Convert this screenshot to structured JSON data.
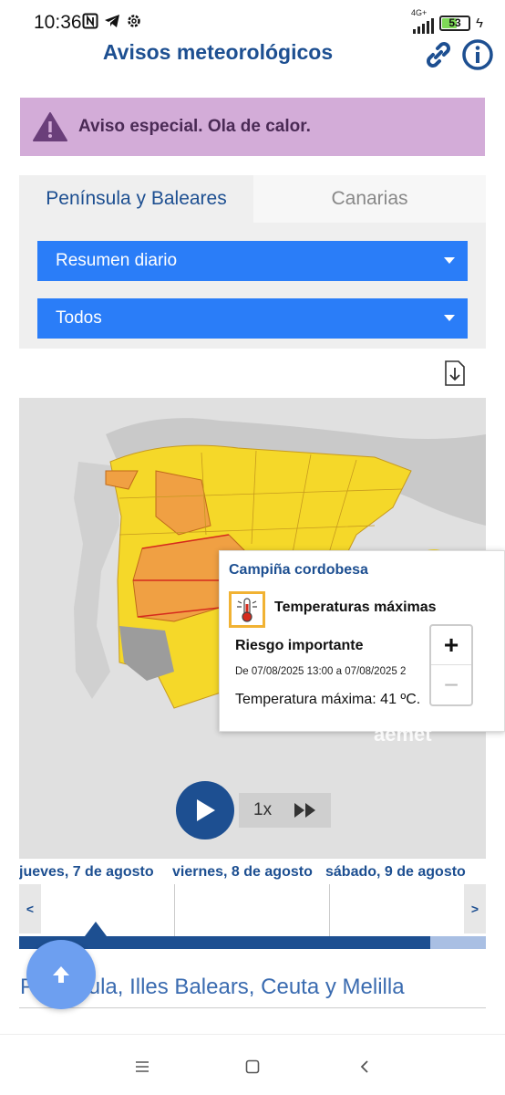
{
  "status_bar": {
    "time": "10:36",
    "network": "4G+",
    "battery_level": "53",
    "battery_fraction": 0.53,
    "icons": [
      "nfc-icon",
      "telegram-icon",
      "settings-icon",
      "signal-icon",
      "battery-icon",
      "charging-icon"
    ]
  },
  "header": {
    "title": "Avisos meteorológicos",
    "link_icon": "link-icon",
    "info_icon": "info-icon",
    "accent_color": "#1d4f91"
  },
  "alert": {
    "text": "Aviso especial. Ola de calor.",
    "icon": "warning-triangle-icon",
    "background": "#d3acd8"
  },
  "tabs": [
    {
      "label": "Península y Baleares",
      "active": true
    },
    {
      "label": "Canarias",
      "active": false
    }
  ],
  "selects": {
    "view": {
      "value": "Resumen diario"
    },
    "filter": {
      "value": "Todos"
    },
    "color": "#2a7df8"
  },
  "map": {
    "popup": {
      "zone": "Campiña cordobesa",
      "event": "Temperaturas máximas",
      "risk": "Riesgo importante",
      "dates": "De 07/08/2025 13:00 a 07/08/2025 2",
      "detail": "Temperatura máxima: 41 ºC."
    },
    "zoom_in": "+",
    "zoom_out": "−",
    "watermark": "aemet",
    "warning_colors": {
      "yellow": "#f5d829",
      "orange": "#f0a043",
      "red": "#d62a1d"
    }
  },
  "player": {
    "speed": "1x",
    "play_icon": "play-icon",
    "fast_forward_icon": "fast-forward-icon"
  },
  "timeline": {
    "days": [
      "jueves, 7 de agosto",
      "viernes, 8 de agosto",
      "sábado, 9 de agosto"
    ],
    "prev": "<",
    "next": ">",
    "progress_fraction": 0.88
  },
  "region_title": "Península, Illes Balears, Ceuta y Melilla",
  "fab_icon": "arrow-up-icon",
  "nav_bar": [
    "menu-icon",
    "home-icon",
    "back-icon"
  ]
}
